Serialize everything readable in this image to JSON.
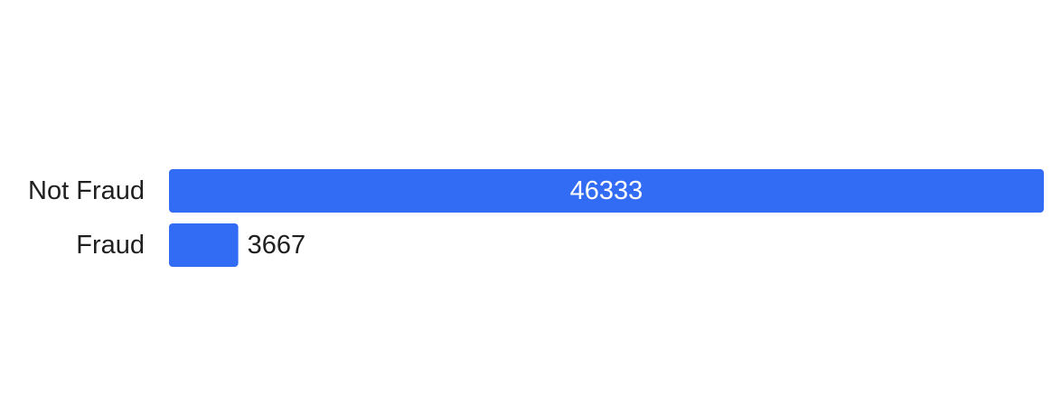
{
  "chart_data": {
    "type": "bar",
    "orientation": "horizontal",
    "categories": [
      "Not Fraud",
      "Fraud"
    ],
    "values": [
      46333,
      3667
    ],
    "title": "",
    "xlabel": "",
    "ylabel": "",
    "xlim": [
      0,
      46333
    ],
    "grid": false,
    "legend": "none",
    "bar_color": "#336cf4",
    "text_color": "#1f1f1f",
    "inside_label_color": "#ffffff"
  }
}
